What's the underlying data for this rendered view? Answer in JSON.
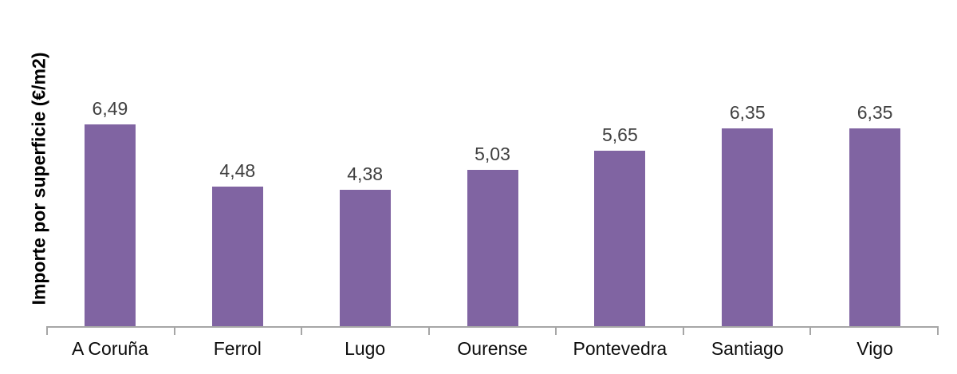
{
  "chart_data": {
    "type": "bar",
    "categories": [
      "A Coruña",
      "Ferrol",
      "Lugo",
      "Ourense",
      "Pontevedra",
      "Santiago",
      "Vigo"
    ],
    "values": [
      6.49,
      4.48,
      4.38,
      5.03,
      5.65,
      6.35,
      6.35
    ],
    "value_labels": [
      "6,49",
      "4,48",
      "4,38",
      "5,03",
      "5,65",
      "6,35",
      "6,35"
    ],
    "title": "",
    "xlabel": "",
    "ylabel": "Importe por superficie (€/m2)",
    "ylim": [
      0,
      7
    ],
    "grid": false,
    "legend": false,
    "decimal_separator": ",",
    "colors": {
      "bar": "#8064A2",
      "value_label": "#404040",
      "category_label": "#0d0d0d",
      "axis_line": "#A6A6A6",
      "background": "#ffffff"
    }
  }
}
